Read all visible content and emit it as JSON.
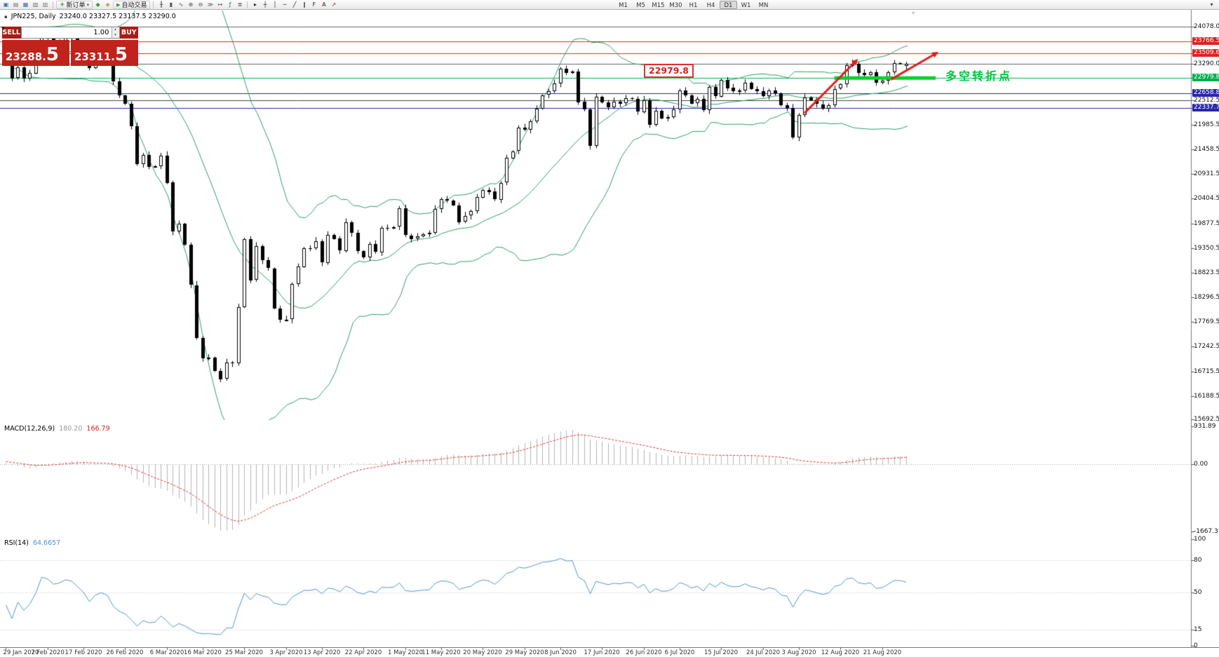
{
  "toolbar": {
    "icons_left": [
      {
        "name": "new-order-window-icon",
        "glyph": "▣",
        "color": "#3a6ea5"
      },
      {
        "name": "chart-window-icon",
        "glyph": "▤",
        "color": "#777777"
      },
      {
        "name": "market-watch-icon",
        "glyph": "▦",
        "color": "#3a6ea5"
      },
      {
        "name": "navigator-icon",
        "glyph": "▧",
        "color": "#777777"
      },
      {
        "name": "terminal-icon",
        "glyph": "▥",
        "color": "#777777"
      }
    ],
    "new_order_button": {
      "plus_icon": "+",
      "label": "新订单",
      "caret_icon": "▾"
    },
    "icons_mid": [
      {
        "name": "expert-advisors-icon",
        "glyph": "◆",
        "color": "#2f9e44"
      },
      {
        "name": "alerts-icon",
        "glyph": "◈",
        "color": "#b08a2e"
      }
    ],
    "autotrade_button": {
      "play_icon": "▶",
      "label": "自动交易"
    },
    "icons_chart": [
      {
        "name": "bar-chart-mode-icon",
        "glyph": "╫",
        "color": "#555555"
      },
      {
        "name": "candlestick-mode-icon",
        "glyph": "▮",
        "color": "#555555"
      },
      {
        "name": "line-chart-mode-icon",
        "glyph": "∿",
        "color": "#555555"
      },
      {
        "name": "zoom-in-icon",
        "glyph": "⊕",
        "color": "#555555"
      },
      {
        "name": "zoom-out-icon",
        "glyph": "⊖",
        "color": "#555555"
      },
      {
        "name": "auto-scroll-icon",
        "glyph": "≫",
        "color": "#555555"
      },
      {
        "name": "chart-shift-icon",
        "glyph": "↦",
        "color": "#555555"
      },
      {
        "name": "indicators-icon",
        "glyph": "ƒ",
        "color": "#1d7a32"
      },
      {
        "name": "templates-icon",
        "glyph": "≣",
        "color": "#555555"
      }
    ],
    "icons_draw": [
      {
        "name": "cursor-icon",
        "glyph": "▸",
        "color": "#222222"
      },
      {
        "name": "crosshair-icon",
        "glyph": "┼",
        "color": "#222222"
      },
      {
        "name": "vertical-line-icon",
        "glyph": "│",
        "color": "#222222"
      },
      {
        "name": "horizontal-line-icon",
        "glyph": "─",
        "color": "#222222"
      },
      {
        "name": "trendline-icon",
        "glyph": "╱",
        "color": "#222222"
      },
      {
        "name": "equidistant-channel-icon",
        "glyph": "∥",
        "color": "#222222"
      },
      {
        "name": "fibonacci-icon",
        "glyph": "F",
        "color": "#222222"
      },
      {
        "name": "text-label-icon",
        "glyph": "A",
        "color": "#222222"
      },
      {
        "name": "arrows-tool-icon",
        "glyph": "↗",
        "color": "#aa2222"
      }
    ],
    "timeframes": [
      "M1",
      "M5",
      "M15",
      "M30",
      "H1",
      "H4",
      "D1",
      "W1",
      "MN"
    ],
    "active_timeframe": "D1",
    "right_icon": {
      "name": "toolbar-customize-icon",
      "glyph": "▾"
    }
  },
  "chart_header": {
    "icon": "▪",
    "symbol": "JPN225, Daily",
    "ohlc": "23240.0 23327.5 23137.5 23290.0"
  },
  "trade_panel": {
    "collapse_icon": "▼",
    "sell_label": "SELL",
    "buy_label": "BUY",
    "volume": "1.00",
    "spin_up_icon": "▴",
    "spin_down_icon": "▾",
    "sell_price_main": "23288.",
    "sell_price_big": "5",
    "buy_price_main": "23311.",
    "buy_price_big": "5"
  },
  "price_callout": "22979.8",
  "annotation_text": "多空转折点",
  "shift_marker_icon": "▿",
  "macd_panel": {
    "title": "MACD(12,26,9)",
    "value_main": "180.20",
    "value_signal": "166.79"
  },
  "rsi_panel": {
    "title": "RSI(14)",
    "value": "64.6657"
  },
  "chart_data": {
    "type": "candlestick",
    "symbol": "JPN225",
    "timeframe": "Daily",
    "y_axis": {
      "top_price": 24078.0,
      "bottom_price": 15692.5,
      "grid_labels": [
        "21985.5",
        "21458.5",
        "20931.5",
        "20404.5",
        "19877.5",
        "19350.5",
        "18823.5",
        "18296.5",
        "17769.5",
        "17242.5",
        "16715.5",
        "16188.5",
        "15692.5"
      ]
    },
    "first_open": 23350,
    "pre_closes": [
      23380,
      23410,
      23450,
      23480,
      23520,
      23560,
      23590,
      23620,
      23650,
      23680,
      23700,
      23720,
      23740,
      23750,
      23730,
      23690,
      23640,
      23560,
      23420
    ],
    "closes": [
      23290,
      22980,
      23205,
      22972,
      23085,
      23320,
      23873,
      23828,
      23686,
      23740,
      23861,
      23828,
      23687,
      23523,
      23194,
      23401,
      23479,
      23387,
      22910,
      22605,
      22426,
      21948,
      21143,
      21344,
      21083,
      21100,
      21329,
      20750,
      19699,
      19867,
      19416,
      18560,
      17431,
      17002,
      17012,
      16727,
      16553,
      16900,
      16888,
      18092,
      19547,
      18665,
      19389,
      19085,
      18917,
      18065,
      17818,
      17820,
      18576,
      18950,
      19353,
      19346,
      19499,
      19043,
      19638,
      19550,
      19290,
      19897,
      19669,
      19280,
      19138,
      19429,
      19262,
      19783,
      19771,
      19800,
      20193,
      19619,
      19550,
      19600,
      19650,
      19675,
      20179,
      20391,
      20366,
      20267,
      19915,
      20037,
      20134,
      20433,
      20595,
      20552,
      20388,
      20741,
      21271,
      21419,
      21916,
      21878,
      22062,
      22326,
      22614,
      22696,
      22864,
      23178,
      23091,
      23125,
      22473,
      22305,
      21531,
      22582,
      22456,
      22355,
      22479,
      22437,
      22549,
      22534,
      22260,
      22512,
      21995,
      22288,
      22122,
      22146,
      22306,
      22714,
      22615,
      22439,
      22529,
      22291,
      22784,
      22587,
      22946,
      22770,
      22696,
      22717,
      22884,
      22751,
      22700,
      22600,
      22715,
      22657,
      22397,
      22339,
      21710,
      22195,
      22573,
      22514,
      22418,
      22330,
      22400,
      22750,
      22844,
      23249,
      23289,
      23096,
      23051,
      23110,
      22880,
      22920,
      23100,
      23296,
      23290,
      23240
    ],
    "last_ohlc": [
      23240.0,
      23327.5,
      23137.5,
      23290.0
    ],
    "x_tick_indices": [
      0,
      7,
      13,
      20,
      27,
      33,
      40,
      47,
      53,
      60,
      67,
      73,
      80,
      87,
      93,
      100,
      107,
      113,
      120,
      127,
      133,
      140,
      147
    ],
    "x_tick_labels": [
      "29 Jan 2020",
      "7 Feb 2020",
      "17 Feb 2020",
      "26 Feb 2020",
      "6 Mar 2020",
      "16 Mar 2020",
      "25 Mar 2020",
      "3 Apr 2020",
      "13 Apr 2020",
      "22 Apr 2020",
      "1 May 2020",
      "11 May 2020",
      "20 May 2020",
      "29 May 2020",
      "8 Jun 2020",
      "17 Jun 2020",
      "26 Jun 2020",
      "6 Jul 2020",
      "15 Jul 2020",
      "24 Jul 2020",
      "3 Aug 2020",
      "12 Aug 2020",
      "21 Aug 2020"
    ],
    "bollinger": {
      "period": 20,
      "deviation": 2,
      "color": "#2e9e63"
    },
    "candle_colors": {
      "bull_fill": "#ffffff",
      "bear_fill": "#000000",
      "outline": "#000000"
    },
    "hlines": [
      {
        "price": 24078.0,
        "label": "24078.0",
        "color": "#666666",
        "label_type": "plain"
      },
      {
        "price": 23766.5,
        "label": "23766.5",
        "color": "#f02222",
        "label_type": "red"
      },
      {
        "price": 23509.6,
        "label": "23509.6",
        "color": "#f02222",
        "label_type": "red"
      },
      {
        "price": 23290.0,
        "label": "23290.0",
        "color": "#666666",
        "label_type": "plain"
      },
      {
        "price": 22979.8,
        "label": "22979.8",
        "color": "#00b050",
        "label_type": "green"
      },
      {
        "price": 22658.8,
        "label": "22658.8",
        "color": "#2a2aa0",
        "label_type": "blue"
      },
      {
        "price": 22512.5,
        "label": "22512.5",
        "color": "#444444",
        "label_type": "plain"
      },
      {
        "price": 22337.7,
        "label": "22337.7",
        "color": "#2a2aa0",
        "label_type": "blue"
      }
    ],
    "support_segment": {
      "price": 22979.8,
      "from_index": 139,
      "to_index": 156,
      "color": "#00d22a",
      "width": 5
    },
    "arrows": [
      {
        "from_index": 134,
        "from_price": 22230,
        "to_index": 143,
        "to_price": 23390,
        "color": "#e02020",
        "width": 3
      },
      {
        "from_index": 148.5,
        "from_price": 22950,
        "to_index": 156.5,
        "to_price": 23540,
        "color": "#e02020",
        "width": 3
      }
    ],
    "macd": {
      "fast": 12,
      "slow": 26,
      "signal": 9,
      "axis_max": 931.89,
      "axis_min": -1667.31,
      "axis_labels": [
        "931.89",
        "0.00",
        "-1667.31"
      ],
      "histogram_color": "#b4b4b4",
      "signal_color": "#e03131"
    },
    "rsi": {
      "period": 14,
      "levels": [
        80,
        50,
        15
      ],
      "axis_labels": [
        "100",
        "80",
        "50",
        "15",
        "0"
      ],
      "color": "#4f94cd"
    }
  }
}
